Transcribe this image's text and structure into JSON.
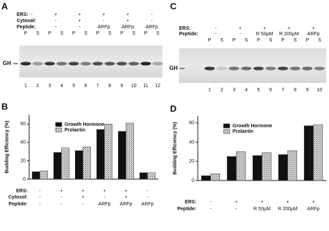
{
  "gels": [
    {
      "label": "A",
      "marker": "GH",
      "rows": [
        {
          "name": "ERS:",
          "values": [
            "-",
            "+",
            "+",
            "+",
            "+",
            "-"
          ]
        },
        {
          "name": "Cytosol:",
          "values": [
            "-",
            "-",
            "+",
            "-",
            "+",
            "-"
          ]
        },
        {
          "name": "Peptide:",
          "values": [
            "-",
            "-",
            "-",
            "ARFp",
            "ARFp",
            "ARFp"
          ]
        }
      ],
      "fractions": [
        "P",
        "S",
        "P",
        "S",
        "P",
        "S",
        "P",
        "S",
        "P",
        "S",
        "P",
        "S"
      ],
      "lanes": [
        "1",
        "2",
        "3",
        "4",
        "5",
        "6",
        "7",
        "8",
        "9",
        "10",
        "11",
        "12"
      ]
    },
    {
      "label": "C",
      "marker": "GH",
      "rows": [
        {
          "name": "ERS:",
          "values": [
            "-",
            "+",
            "+",
            "+",
            "+"
          ]
        },
        {
          "name": "Peptide:",
          "values": [
            "-",
            "-",
            "R 50μM",
            "R 200μM",
            "ARFp"
          ]
        }
      ],
      "fractions": [
        "P",
        "S",
        "P",
        "S",
        "P",
        "S",
        "P",
        "S",
        "P",
        "S"
      ],
      "lanes": [
        "1",
        "2",
        "3",
        "4",
        "5",
        "6",
        "7",
        "8",
        "9",
        "10"
      ]
    }
  ],
  "chart_data": [
    {
      "type": "bar",
      "label": "B",
      "y_label": "Budding Efficiency (%)",
      "categories": [
        null,
        null,
        null,
        null,
        null,
        null
      ],
      "series": [
        {
          "name": "Growth Hormone",
          "color": "#111111",
          "values": [
            8,
            29,
            31,
            54,
            52,
            7
          ]
        },
        {
          "name": "Prolactin",
          "color": "stipple",
          "values": [
            9,
            34,
            35,
            60,
            61,
            7
          ]
        }
      ],
      "conditions": [
        {
          "name": "ERS:",
          "values": [
            "-",
            "+",
            "+",
            "+",
            "+",
            "-"
          ]
        },
        {
          "name": "Cytosol:",
          "values": [
            "-",
            "-",
            "+",
            "-",
            "+",
            "-"
          ]
        },
        {
          "name": "Peptide:",
          "values": [
            "-",
            "-",
            "-",
            "ARFp",
            "ARFp",
            "ARFp"
          ]
        }
      ],
      "ylim": [
        0,
        70
      ],
      "yticks": [
        0,
        20,
        40,
        60
      ],
      "legend": "top-left"
    },
    {
      "type": "bar",
      "label": "D",
      "y_label": "Budding Efficiency (%)",
      "categories": [
        null,
        null,
        null,
        null,
        null
      ],
      "series": [
        {
          "name": "Growth Hormone",
          "color": "#111111",
          "values": [
            5,
            25,
            26,
            27,
            57
          ]
        },
        {
          "name": "Prolactin",
          "color": "stipple",
          "values": [
            7,
            30,
            29,
            31,
            58
          ]
        }
      ],
      "conditions": [
        {
          "name": "ERS:",
          "values": [
            "-",
            "+",
            "+",
            "+",
            "+"
          ]
        },
        {
          "name": "Peptide:",
          "values": [
            "-",
            "-",
            "R 50μM",
            "R 200μM",
            "ARFp"
          ]
        }
      ],
      "ylim": [
        0,
        67
      ],
      "yticks": [
        0,
        20,
        40,
        60
      ],
      "legend": "top-left"
    }
  ]
}
